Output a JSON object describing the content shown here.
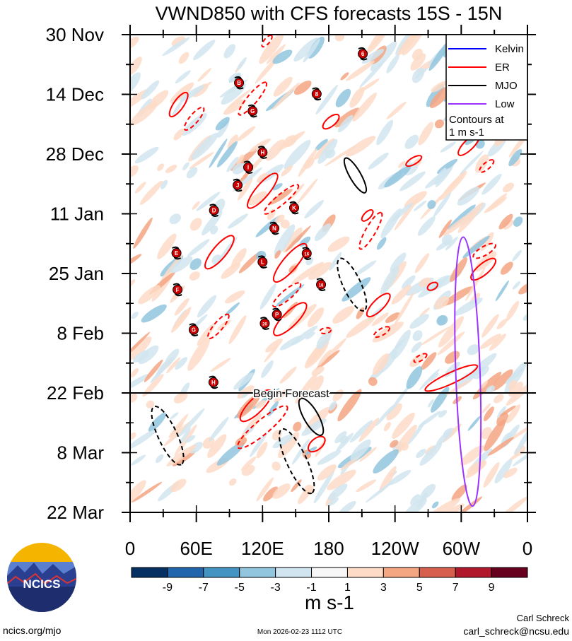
{
  "chart_data": {
    "type": "heatmap",
    "title": "VWND850 with CFS forecasts  15S - 15N",
    "xlabel": "",
    "ylabel": "",
    "x_range_deg": [
      0,
      360
    ],
    "x_ticks": [
      {
        "lon": 0,
        "label": "0"
      },
      {
        "lon": 60,
        "label": "60E"
      },
      {
        "lon": 120,
        "label": "120E"
      },
      {
        "lon": 180,
        "label": "180"
      },
      {
        "lon": 240,
        "label": "120W"
      },
      {
        "lon": 300,
        "label": "60W"
      },
      {
        "lon": 360,
        "label": "0"
      }
    ],
    "y_range_days": [
      0,
      112
    ],
    "y_ticks": [
      {
        "day": 0,
        "label": "30 Nov"
      },
      {
        "day": 14,
        "label": "14 Dec"
      },
      {
        "day": 28,
        "label": "28 Dec"
      },
      {
        "day": 42,
        "label": "11 Jan"
      },
      {
        "day": 56,
        "label": "25 Jan"
      },
      {
        "day": 70,
        "label": "8 Feb"
      },
      {
        "day": 84,
        "label": "22 Feb"
      },
      {
        "day": 98,
        "label": "8 Mar"
      },
      {
        "day": 112,
        "label": "22 Mar"
      }
    ],
    "forecast_start_day": 84,
    "forecast_label": "Begin Forecast",
    "legend": {
      "placement": "top-right",
      "entries": [
        {
          "label": "Kelvin",
          "color": "#0000ff"
        },
        {
          "label": "ER",
          "color": "#ff0000"
        },
        {
          "label": "MJO",
          "color": "#000000"
        },
        {
          "label": "Low",
          "color": "#9933ff"
        }
      ],
      "note_line1": "Contours at",
      "note_line2": "1 m s-1"
    },
    "colorbar": {
      "units": "m s-1",
      "labels": [
        "-9",
        "-7",
        "-5",
        "-3",
        "-1",
        "1",
        "3",
        "5",
        "7",
        "9"
      ],
      "colors": [
        "#053061",
        "#2166ac",
        "#4393c3",
        "#92c5de",
        "#d1e5f0",
        "#f7f7f7",
        "#fddbc7",
        "#f4a582",
        "#d6604d",
        "#b2182b",
        "#67001f"
      ]
    },
    "contours": [
      {
        "type": "ER",
        "dashed": false,
        "lon": 44,
        "day": 16.4,
        "major": 13,
        "minor": 4.5,
        "angle": -55
      },
      {
        "type": "ER",
        "dashed": false,
        "lon": 120,
        "day": 36.6,
        "major": 20,
        "minor": 6,
        "angle": -50
      },
      {
        "type": "ER",
        "dashed": false,
        "lon": 81,
        "day": 51,
        "major": 19,
        "minor": 6,
        "angle": -50
      },
      {
        "type": "ER",
        "dashed": false,
        "lon": 145,
        "day": 53.5,
        "major": 22,
        "minor": 6.5,
        "angle": -50
      },
      {
        "type": "ER",
        "dashed": false,
        "lon": 145,
        "day": 66.7,
        "major": 20,
        "minor": 6.5,
        "angle": -45
      },
      {
        "type": "ER",
        "dashed": false,
        "lon": 225,
        "day": 63.4,
        "major": 14,
        "minor": 5,
        "angle": -45
      },
      {
        "type": "ER",
        "dashed": false,
        "lon": 114,
        "day": 87,
        "major": 19,
        "minor": 6.5,
        "angle": -45
      },
      {
        "type": "ER",
        "dashed": false,
        "lon": 182,
        "day": 20.4,
        "major": 9,
        "minor": 4,
        "angle": -40
      },
      {
        "type": "ER",
        "dashed": false,
        "lon": 257,
        "day": 29.6,
        "major": 8,
        "minor": 3,
        "angle": -30
      },
      {
        "type": "ER",
        "dashed": false,
        "lon": 215,
        "day": 42.4,
        "major": 6.5,
        "minor": 3,
        "angle": -45
      },
      {
        "type": "ER",
        "dashed": false,
        "lon": 320,
        "day": 55,
        "major": 14,
        "minor": 5,
        "angle": -40
      },
      {
        "type": "ER",
        "dashed": false,
        "lon": 291,
        "day": 80.5,
        "major": 26,
        "minor": 5,
        "angle": -25
      },
      {
        "type": "ER",
        "dashed": false,
        "lon": 307,
        "day": 25.8,
        "major": 13,
        "minor": 4.5,
        "angle": -45
      },
      {
        "type": "ER",
        "dashed": false,
        "lon": 169,
        "day": 96,
        "major": 9,
        "minor": 5,
        "angle": -40
      },
      {
        "type": "ER",
        "dashed": false,
        "lon": 274,
        "day": 59,
        "major": 5,
        "minor": 3,
        "angle": -30
      },
      {
        "type": "ER",
        "dashed": true,
        "lon": 58,
        "day": 19.7,
        "major": 13,
        "minor": 4,
        "angle": -50
      },
      {
        "type": "ER",
        "dashed": true,
        "lon": 111,
        "day": 15,
        "major": 19,
        "minor": 4.5,
        "angle": -50
      },
      {
        "type": "ER",
        "dashed": true,
        "lon": 137,
        "day": 38.6,
        "major": 20,
        "minor": 4.5,
        "angle": -40
      },
      {
        "type": "ER",
        "dashed": true,
        "lon": 218,
        "day": 46,
        "major": 19,
        "minor": 4.5,
        "angle": -60
      },
      {
        "type": "ER",
        "dashed": true,
        "lon": 142,
        "day": 61,
        "major": 16,
        "minor": 4.5,
        "angle": -40
      },
      {
        "type": "ER",
        "dashed": true,
        "lon": 80,
        "day": 68.4,
        "major": 14,
        "minor": 4,
        "angle": -50
      },
      {
        "type": "ER",
        "dashed": true,
        "lon": 120,
        "day": 92,
        "major": 29,
        "minor": 6.5,
        "angle": -40
      },
      {
        "type": "ER",
        "dashed": true,
        "lon": 323,
        "day": 30.8,
        "major": 8,
        "minor": 3,
        "angle": -40
      },
      {
        "type": "ER",
        "dashed": true,
        "lon": 321,
        "day": 50.7,
        "major": 11.5,
        "minor": 4,
        "angle": -30
      },
      {
        "type": "ER",
        "dashed": true,
        "lon": 228,
        "day": 69.7,
        "major": 8,
        "minor": 3,
        "angle": -30
      },
      {
        "type": "ER",
        "dashed": true,
        "lon": 263,
        "day": 75.8,
        "major": 6.5,
        "minor": 2.5,
        "angle": -30
      },
      {
        "type": "ER",
        "dashed": true,
        "lon": 177,
        "day": 69.4,
        "major": 5,
        "minor": 2.5,
        "angle": -10
      },
      {
        "type": "ER",
        "dashed": true,
        "lon": 124,
        "day": 1.5,
        "major": 6.5,
        "minor": 2.5,
        "angle": -50
      },
      {
        "type": "MJO",
        "dashed": false,
        "lon": 204,
        "day": 33,
        "major": 18,
        "minor": 5,
        "angle": 60
      },
      {
        "type": "MJO",
        "dashed": false,
        "lon": 164,
        "day": 89.6,
        "major": 19,
        "minor": 6.5,
        "angle": 60
      },
      {
        "type": "MJO",
        "dashed": true,
        "lon": 201,
        "day": 58.6,
        "major": 26,
        "minor": 8,
        "angle": 65
      },
      {
        "type": "MJO",
        "dashed": true,
        "lon": 34,
        "day": 94,
        "major": 29,
        "minor": 8.5,
        "angle": 65
      },
      {
        "type": "MJO",
        "dashed": true,
        "lon": 151,
        "day": 100,
        "major": 32,
        "minor": 9,
        "angle": 65
      },
      {
        "type": "Low",
        "dashed": false,
        "lon": 306,
        "day": 79,
        "major": 122,
        "minor": 11,
        "angle": 88
      }
    ],
    "storms": [
      {
        "label": "B",
        "lon": 98.7,
        "day": 11.3
      },
      {
        "label": "G",
        "lon": 111,
        "day": 17.9
      },
      {
        "label": "8",
        "lon": 169,
        "day": 13.9
      },
      {
        "label": "H",
        "lon": 120,
        "day": 27.6
      },
      {
        "label": "I",
        "lon": 107,
        "day": 31.1
      },
      {
        "label": "J",
        "lon": 97.4,
        "day": 35.3
      },
      {
        "label": "D",
        "lon": 76,
        "day": 41.2
      },
      {
        "label": "K",
        "lon": 148.6,
        "day": 40.6
      },
      {
        "label": "N",
        "lon": 130.7,
        "day": 45.4
      },
      {
        "label": "E",
        "lon": 42,
        "day": 51.2
      },
      {
        "label": "L",
        "lon": 120,
        "day": 53.3
      },
      {
        "label": "16",
        "lon": 160,
        "day": 51.3
      },
      {
        "label": "F",
        "lon": 43,
        "day": 59.8
      },
      {
        "label": "18",
        "lon": 173,
        "day": 58.6
      },
      {
        "label": "P",
        "lon": 133,
        "day": 65.6
      },
      {
        "label": "20",
        "lon": 122,
        "day": 67.7
      },
      {
        "label": "G",
        "lon": 57.6,
        "day": 69.2
      },
      {
        "label": "H",
        "lon": 75.5,
        "day": 81.5
      },
      {
        "label": "6",
        "lon": 210.8,
        "day": 4.5
      }
    ]
  },
  "footer": {
    "logo_text": "NCICS",
    "url": "ncics.org/mjo",
    "timestamp": "Mon 2026-02-23 1112 UTC",
    "author": "Carl Schreck",
    "email": "carl_schreck@ncsu.edu"
  }
}
